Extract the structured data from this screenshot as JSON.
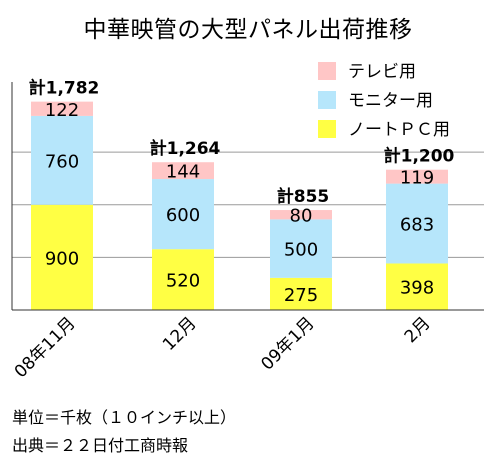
{
  "chart_data": {
    "type": "bar",
    "stacked": true,
    "title": "中華映管の大型パネル出荷推移",
    "categories": [
      "08年11月",
      "12月",
      "09年1月",
      "2月"
    ],
    "series": [
      {
        "name": "ノートＰＣ用",
        "values": [
          900,
          520,
          275,
          398
        ],
        "color": "#ffff44"
      },
      {
        "name": "モニター用",
        "values": [
          760,
          600,
          500,
          683
        ],
        "color": "#b6e6fb"
      },
      {
        "name": "テレビ用",
        "values": [
          122,
          144,
          80,
          119
        ],
        "color": "#ffc6c6"
      }
    ],
    "totals": [
      "計1,782",
      "計1,264",
      "計855",
      "計1,200"
    ],
    "ylim": [
      0,
      1950
    ],
    "grid": true,
    "gridlines": [
      450,
      900,
      1350
    ],
    "legend_order": [
      "テレビ用",
      "モニター用",
      "ノートＰＣ用"
    ],
    "legend_position": "top-right"
  },
  "footnotes": {
    "unit": "単位＝千枚（１０インチ以上）",
    "source": "出典＝２２日付工商時報"
  }
}
